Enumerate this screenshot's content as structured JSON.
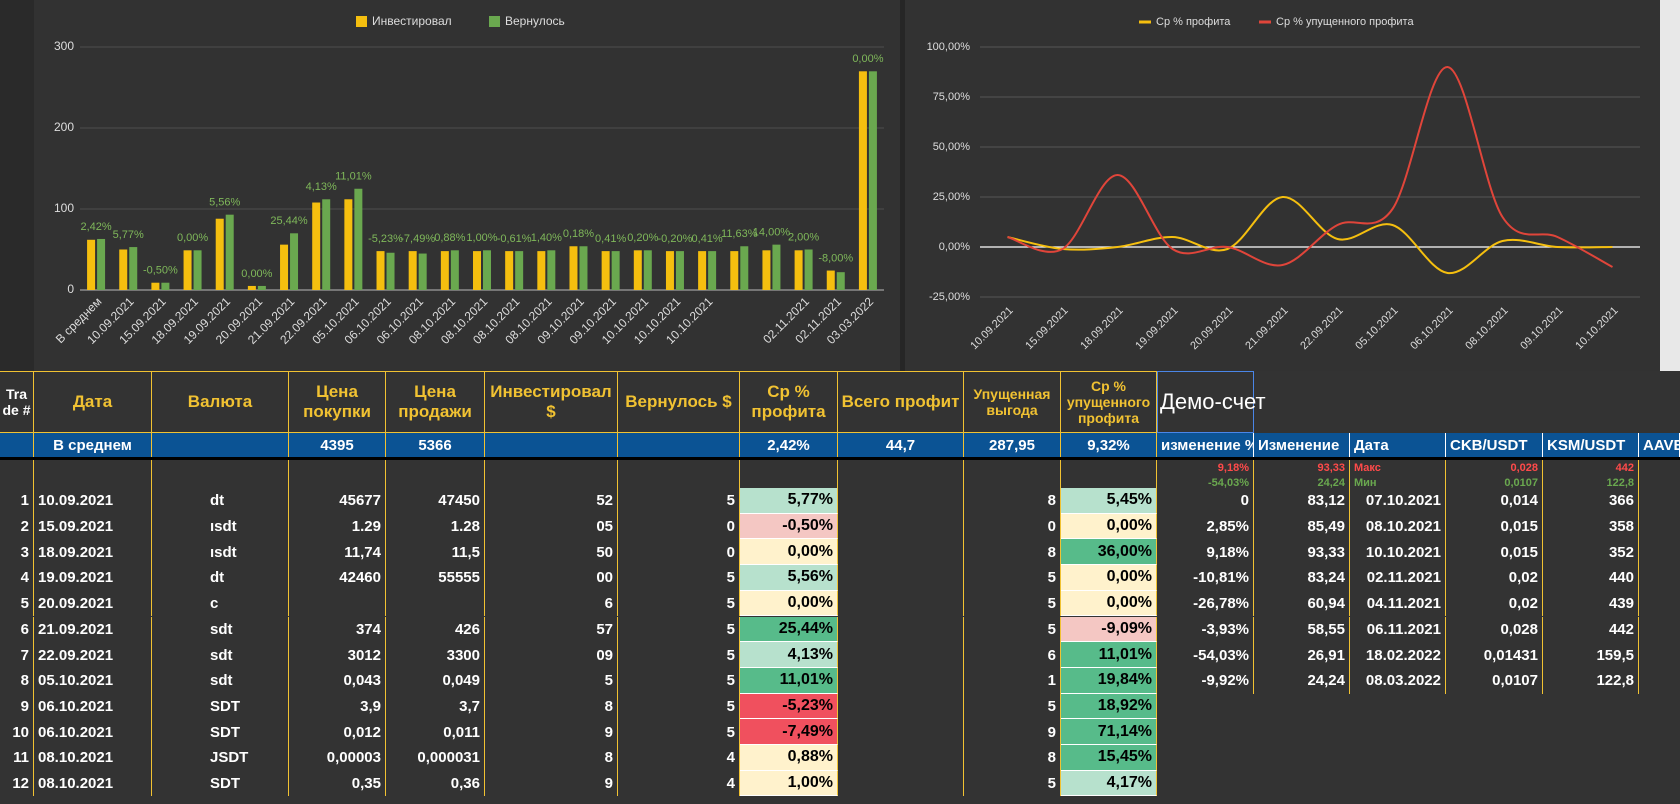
{
  "chart_data": [
    {
      "type": "bar",
      "legend": "top",
      "categories": [
        "В среднем",
        "10.09.2021",
        "15.09.2021",
        "18.09.2021",
        "19.09.2021",
        "20.09.2021",
        "21.09.2021",
        "22.09.2021",
        "05.10.2021",
        "06.10.2021",
        "06.10.2021",
        "08.10.2021",
        "08.10.2021",
        "08.10.2021",
        "08.10.2021",
        "09.10.2021",
        "09.10.2021",
        "10.10.2021",
        "10.10.2021",
        "10.10.2021",
        null,
        null,
        "02.11.2021",
        "02.11.2021",
        "03.03.2022"
      ],
      "series": [
        {
          "name": "Инвестировал",
          "color": "#f5bf0f",
          "values": [
            62,
            50,
            9,
            49,
            88,
            5,
            56,
            108,
            112,
            48,
            48,
            48,
            48,
            48,
            48,
            54,
            48,
            49,
            48,
            48,
            48,
            49,
            49,
            24,
            270
          ]
        },
        {
          "name": "Вернулось",
          "color": "#6aa84f",
          "values": [
            63,
            53,
            9,
            49,
            93,
            5,
            70,
            112,
            125,
            46,
            45,
            49,
            49,
            48,
            49,
            54,
            48,
            49,
            48,
            48,
            54,
            56,
            50,
            22,
            270
          ]
        }
      ],
      "bar_labels": [
        "2,42%",
        "5,77%",
        "-0,50%",
        "0,00%",
        "5,56%",
        "0,00%",
        "25,44%",
        "4,13%",
        "11,01%",
        "-5,23%",
        "-7,49%",
        "0,88%",
        "1,00%",
        "-0,61%",
        "1,40%",
        "0,18%",
        "0,41%",
        "0,20%",
        "-0,20%",
        "0,41%",
        "11,63%",
        "14,00%",
        "2,00%",
        "-8,00%",
        "0,00%"
      ],
      "bar_label_color": "#7fb85a",
      "ylim": [
        0,
        300
      ],
      "yticks": [
        0,
        100,
        200,
        300
      ],
      "grid": true
    },
    {
      "type": "line",
      "legend": "top",
      "smooth": true,
      "categories": [
        "10.09.2021",
        "15.09.2021",
        "18.09.2021",
        "19.09.2021",
        "20.09.2021",
        "21.09.2021",
        "22.09.2021",
        "05.10.2021",
        "06.10.2021",
        "08.10.2021",
        "09.10.2021",
        "10.10.2021"
      ],
      "series": [
        {
          "name": "Ср % профита",
          "color": "#f5bf0f",
          "values": [
            5,
            -1,
            0,
            5,
            -1,
            25,
            4,
            11,
            -13,
            3,
            0,
            0
          ]
        },
        {
          "name": "Ср % упущенного профита",
          "color": "#e0453a",
          "values": [
            5,
            -1,
            36,
            -1,
            0,
            -9,
            11,
            19,
            90,
            15,
            5,
            -10
          ]
        }
      ],
      "ylim": [
        -25,
        100
      ],
      "yticks": [
        {
          "value": -25,
          "label": "-25,00%"
        },
        {
          "value": 0,
          "label": "0,00%"
        },
        {
          "value": 25,
          "label": "25,00%"
        },
        {
          "value": 50,
          "label": "50,00%"
        },
        {
          "value": 75,
          "label": "75,00%"
        },
        {
          "value": 100,
          "label": "100,00%"
        }
      ],
      "grid": true,
      "zero_line_color": "#ffffff"
    }
  ],
  "table": {
    "header": [
      "Trade #",
      "Дата",
      "Валюта",
      "Цена покупки",
      "Цена продажи",
      "Инвестировал $",
      "Вернулось $",
      "Ср % профита",
      "Всего профит",
      "Упущенная выгода",
      "Ср % упущенного профита"
    ],
    "avg_row": [
      "В среднем",
      null,
      "4395",
      "5366",
      null,
      null,
      "2,42%",
      "44,7",
      "287,95",
      "9,32%"
    ],
    "rows": [
      [
        "1",
        "10.09.2021",
        "dt",
        "45677",
        "47450",
        "52",
        "5",
        "5,77%",
        null,
        "8",
        "5,45%"
      ],
      [
        "2",
        "15.09.2021",
        "ısdt",
        "1.29",
        "1.28",
        "05",
        "0",
        "-0,50%",
        null,
        "0",
        "0,00%"
      ],
      [
        "3",
        "18.09.2021",
        "ısdt",
        "11,74",
        "11,5",
        "50",
        "0",
        "0,00%",
        null,
        "8",
        "36,00%"
      ],
      [
        "4",
        "19.09.2021",
        "dt",
        "42460",
        "55555",
        "00",
        "5",
        "5,56%",
        null,
        "5",
        "0,00%"
      ],
      [
        "5",
        "20.09.2021",
        "c",
        null,
        null,
        "6",
        "5",
        "0,00%",
        null,
        "5",
        "0,00%"
      ],
      [
        "6",
        "21.09.2021",
        "sdt",
        "374",
        "426",
        "57",
        "5",
        "25,44%",
        null,
        "5",
        "-9,09%"
      ],
      [
        "7",
        "22.09.2021",
        "sdt",
        "3012",
        "3300",
        "09",
        "5",
        "4,13%",
        null,
        "6",
        "11,01%"
      ],
      [
        "8",
        "05.10.2021",
        "sdt",
        "0,043",
        "0,049",
        "5",
        "5",
        "11,01%",
        null,
        "1",
        "19,84%"
      ],
      [
        "9",
        "06.10.2021",
        "SDT",
        "3,9",
        "3,7",
        "8",
        "5",
        "-5,23%",
        null,
        "5",
        "18,92%"
      ],
      [
        "10",
        "06.10.2021",
        "SDT",
        "0,012",
        "0,011",
        "9",
        "5",
        "-7,49%",
        null,
        "9",
        "71,14%"
      ],
      [
        "11",
        "08.10.2021",
        "JSDT",
        "0,00003",
        "0,000031",
        "8",
        "4",
        "0,88%",
        null,
        "8",
        "15,45%"
      ],
      [
        "12",
        "08.10.2021",
        "SDT",
        "0,35",
        "0,36",
        "9",
        "4",
        "1,00%",
        null,
        "5",
        "4,17%"
      ]
    ],
    "profit_fill": [
      "#b7e1cd",
      "#f4c7c3",
      "#fff2cc",
      "#b7e1cd",
      "#fff2cc",
      "#57bb8a",
      "#b7e1cd",
      "#57bb8a",
      "#f0505e",
      "#f0505e",
      "#fff2cc",
      "#fff2cc"
    ],
    "lost_fill": [
      "#b7e1cd",
      "#fff2cc",
      "#57bb8a",
      "#fff2cc",
      "#fff2cc",
      "#f4c7c3",
      "#57bb8a",
      "#57bb8a",
      "#57bb8a",
      "#57bb8a",
      "#57bb8a",
      "#b7e1cd"
    ]
  },
  "demo": {
    "title": "Демо-счет",
    "header": [
      "изменение %",
      "Изменение",
      "Дата",
      "CKB/USDT",
      "KSM/USDT",
      "AAVE"
    ],
    "max_row": [
      "9,18%",
      "93,33",
      "Макс",
      "0,028",
      "442"
    ],
    "max_color": "#ff4a4a",
    "min_row": [
      "-54,03%",
      "24,24",
      "Мин",
      "0,0107",
      "122,8"
    ],
    "min_color": "#6aa84f",
    "rows": [
      [
        "0",
        "83,12",
        "07.10.2021",
        "0,014",
        "366"
      ],
      [
        "2,85%",
        "85,49",
        "08.10.2021",
        "0,015",
        "358"
      ],
      [
        "9,18%",
        "93,33",
        "10.10.2021",
        "0,015",
        "352"
      ],
      [
        "-10,81%",
        "83,24",
        "02.11.2021",
        "0,02",
        "440"
      ],
      [
        "-26,78%",
        "60,94",
        "04.11.2021",
        "0,02",
        "439"
      ],
      [
        "-3,93%",
        "58,55",
        "06.11.2021",
        "0,028",
        "442"
      ],
      [
        "-54,03%",
        "26,91",
        "18.02.2022",
        "0,01431",
        "159,5"
      ],
      [
        "-9,92%",
        "24,24",
        "08.03.2022",
        "0,0107",
        "122,8"
      ]
    ]
  }
}
